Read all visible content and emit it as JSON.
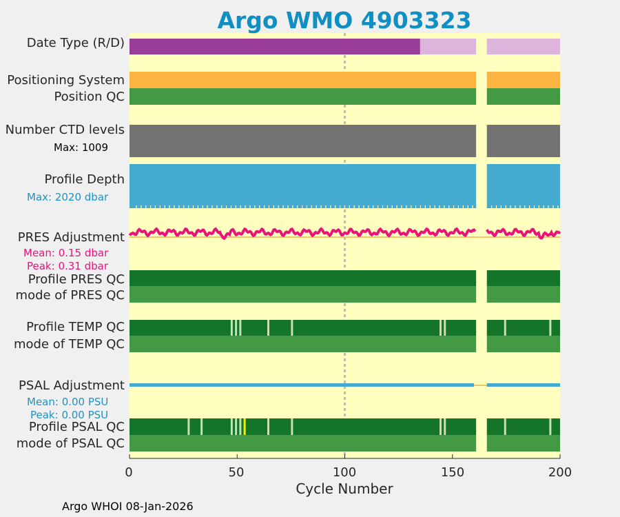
{
  "title": "Argo WMO 4903323",
  "footer": "Argo WHOI 08-Jan-2026",
  "rows": {
    "date_type": "Date Type (R/D)",
    "positioning_system": "Positioning System",
    "position_qc": "Position QC",
    "n_ctd_levels": "Number CTD levels",
    "n_ctd_max": "Max: 1009",
    "profile_depth": "Profile Depth",
    "profile_depth_max": "Max: 2020 dbar",
    "pres_adjustment": "PRES Adjustment",
    "pres_mean": "Mean: 0.15 dbar",
    "pres_peak": "Peak: 0.31 dbar",
    "profile_pres_qc": "Profile PRES QC",
    "mode_pres_qc": "mode of PRES QC",
    "profile_temp_qc": "Profile TEMP QC",
    "mode_temp_qc": "mode of TEMP QC",
    "psal_adjustment": "PSAL Adjustment",
    "psal_mean": "Mean: 0.00 PSU",
    "psal_peak": "Peak: 0.00 PSU",
    "profile_psal_qc": "Profile PSAL QC",
    "mode_psal_qc": "mode of PSAL QC"
  },
  "colors": {
    "background": "#ffffc0",
    "realtime": "#993d99",
    "delayed": "#dcb4dc",
    "positioning": "#fbb441",
    "qc_good": "#449a44",
    "qc_dark": "#147529",
    "ctd": "#737373",
    "depth": "#44aacf",
    "pres_line": "#e8147a",
    "psal_line": "#44aacf",
    "qc_flag_light": "#c8e0b4",
    "qc_flag_yellow": "#f0f000",
    "title": "#0f8fc3",
    "sub_pink": "#e8147a",
    "sub_blue": "#1b93c4"
  },
  "chart_data": {
    "type": "timeline",
    "title": "Argo WMO 4903323",
    "xlabel": "Cycle Number",
    "xlim": [
      0,
      200
    ],
    "xticks": [
      0,
      50,
      100,
      150,
      200
    ],
    "data_gap": [
      161,
      166
    ],
    "reference_cycle": 100,
    "date_type": {
      "realtime_until": 135,
      "delayed_after": 135
    },
    "n_ctd_levels_max": 1009,
    "profile_depth_max_dbar": 2020,
    "pres_adjustment": {
      "mean": 0.15,
      "peak": 0.31,
      "unit": "dbar"
    },
    "psal_adjustment": {
      "mean": 0.0,
      "peak": 0.0,
      "unit": "PSU"
    },
    "temp_qc_flagged_cycles": [
      47,
      49,
      51,
      64,
      75,
      144,
      146,
      174,
      195
    ],
    "psal_qc_flagged_cycles": [
      27,
      33,
      47,
      49,
      51,
      64,
      75,
      144,
      146,
      174,
      195
    ],
    "psal_qc_yellow_cycles": [
      53
    ]
  }
}
